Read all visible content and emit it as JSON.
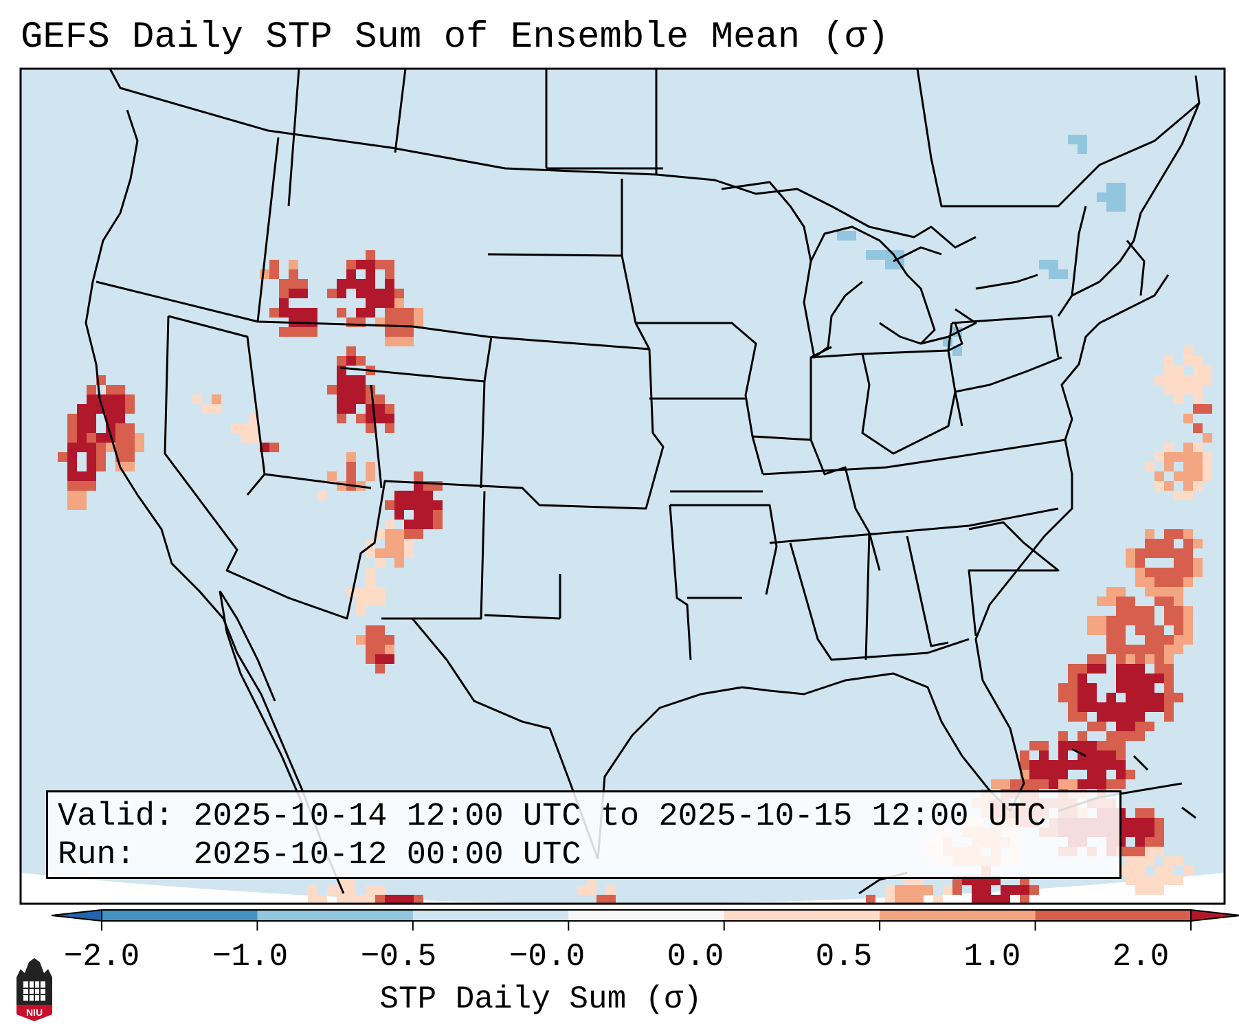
{
  "title": "GEFS Daily STP Sum of Ensemble Mean (σ)",
  "info_box": {
    "valid_label": "Valid:",
    "valid_text": "2025-10-14 12:00 UTC to 2025-10-15 12:00 UTC",
    "run_label": "Run:",
    "run_text": "2025-10-12 00:00 UTC"
  },
  "colorbar": {
    "label": "STP Daily Sum (σ)",
    "ticks": [
      "−2.0",
      "−1.0",
      "−0.5",
      "−0.0",
      "0.0",
      "0.5",
      "1.0",
      "2.0"
    ],
    "bins": [
      {
        "range": "-2.0 to -1.0",
        "color": "#4393c3"
      },
      {
        "range": "-1.0 to -0.5",
        "color": "#92c5de"
      },
      {
        "range": "-0.5 to -0.0",
        "color": "#d1e5f0"
      },
      {
        "range": "-0.0 to 0.0",
        "color": "#f7f7f7"
      },
      {
        "range": "0.0 to 0.5",
        "color": "#fddbc7"
      },
      {
        "range": "0.5 to 1.0",
        "color": "#f4a582"
      },
      {
        "range": "1.0 to 2.0",
        "color": "#d6604d"
      }
    ],
    "under_color": "#2166ac",
    "over_color": "#b2182b"
  },
  "logo": {
    "text": "NIU",
    "color": "#c8102e"
  },
  "colors": {
    "background": "#d1e5f0",
    "strong_positive": "#b2182b",
    "weak_negative": "#92c5de"
  }
}
